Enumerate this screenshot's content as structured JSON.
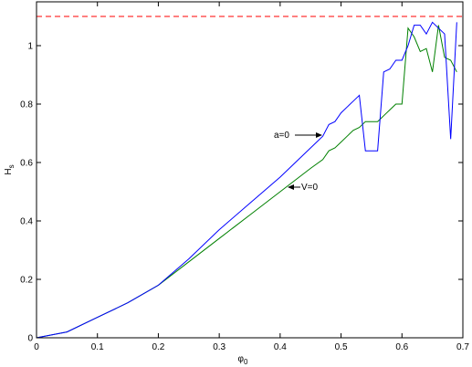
{
  "chart_data": {
    "type": "line",
    "x": [
      0,
      0.05,
      0.1,
      0.15,
      0.2,
      0.25,
      0.3,
      0.35,
      0.4,
      0.45,
      0.47,
      0.48,
      0.49,
      0.5,
      0.51,
      0.52,
      0.53,
      0.54,
      0.55,
      0.56,
      0.57,
      0.58,
      0.59,
      0.6,
      0.61,
      0.62,
      0.63,
      0.64,
      0.65,
      0.66,
      0.67,
      0.68,
      0.69
    ],
    "series": [
      {
        "color": "#0000ff",
        "values": [
          0,
          0.02,
          0.07,
          0.12,
          0.18,
          0.27,
          0.37,
          0.46,
          0.55,
          0.65,
          0.69,
          0.73,
          0.74,
          0.77,
          0.79,
          0.81,
          0.83,
          0.64,
          0.64,
          0.64,
          0.91,
          0.92,
          0.95,
          0.95,
          1.0,
          1.07,
          1.07,
          1.04,
          1.08,
          1.06,
          1.04,
          0.68,
          1.08
        ]
      },
      {
        "color": "#008000",
        "values": [
          0,
          0.02,
          0.07,
          0.12,
          0.18,
          0.26,
          0.34,
          0.42,
          0.5,
          0.58,
          0.61,
          0.64,
          0.65,
          0.67,
          0.69,
          0.71,
          0.72,
          0.74,
          0.74,
          0.74,
          0.76,
          0.78,
          0.8,
          0.8,
          1.06,
          1.03,
          0.98,
          0.99,
          0.91,
          1.07,
          0.96,
          0.95,
          0.91
        ]
      }
    ],
    "hline": {
      "value": 1.1,
      "color": "#ff0000"
    },
    "annotations": [
      "a=0",
      "V=0"
    ],
    "xlabel": [
      "φ",
      "0"
    ],
    "ylabel": [
      "H",
      "s"
    ],
    "xlim": [
      0,
      0.7
    ],
    "xticks": [
      0,
      0.1,
      0.2,
      0.3,
      0.4,
      0.5,
      0.6,
      0.7
    ],
    "ylim": [
      0,
      1.15
    ],
    "yticks": [
      0,
      0.2,
      0.4,
      0.6,
      0.8,
      1
    ]
  }
}
